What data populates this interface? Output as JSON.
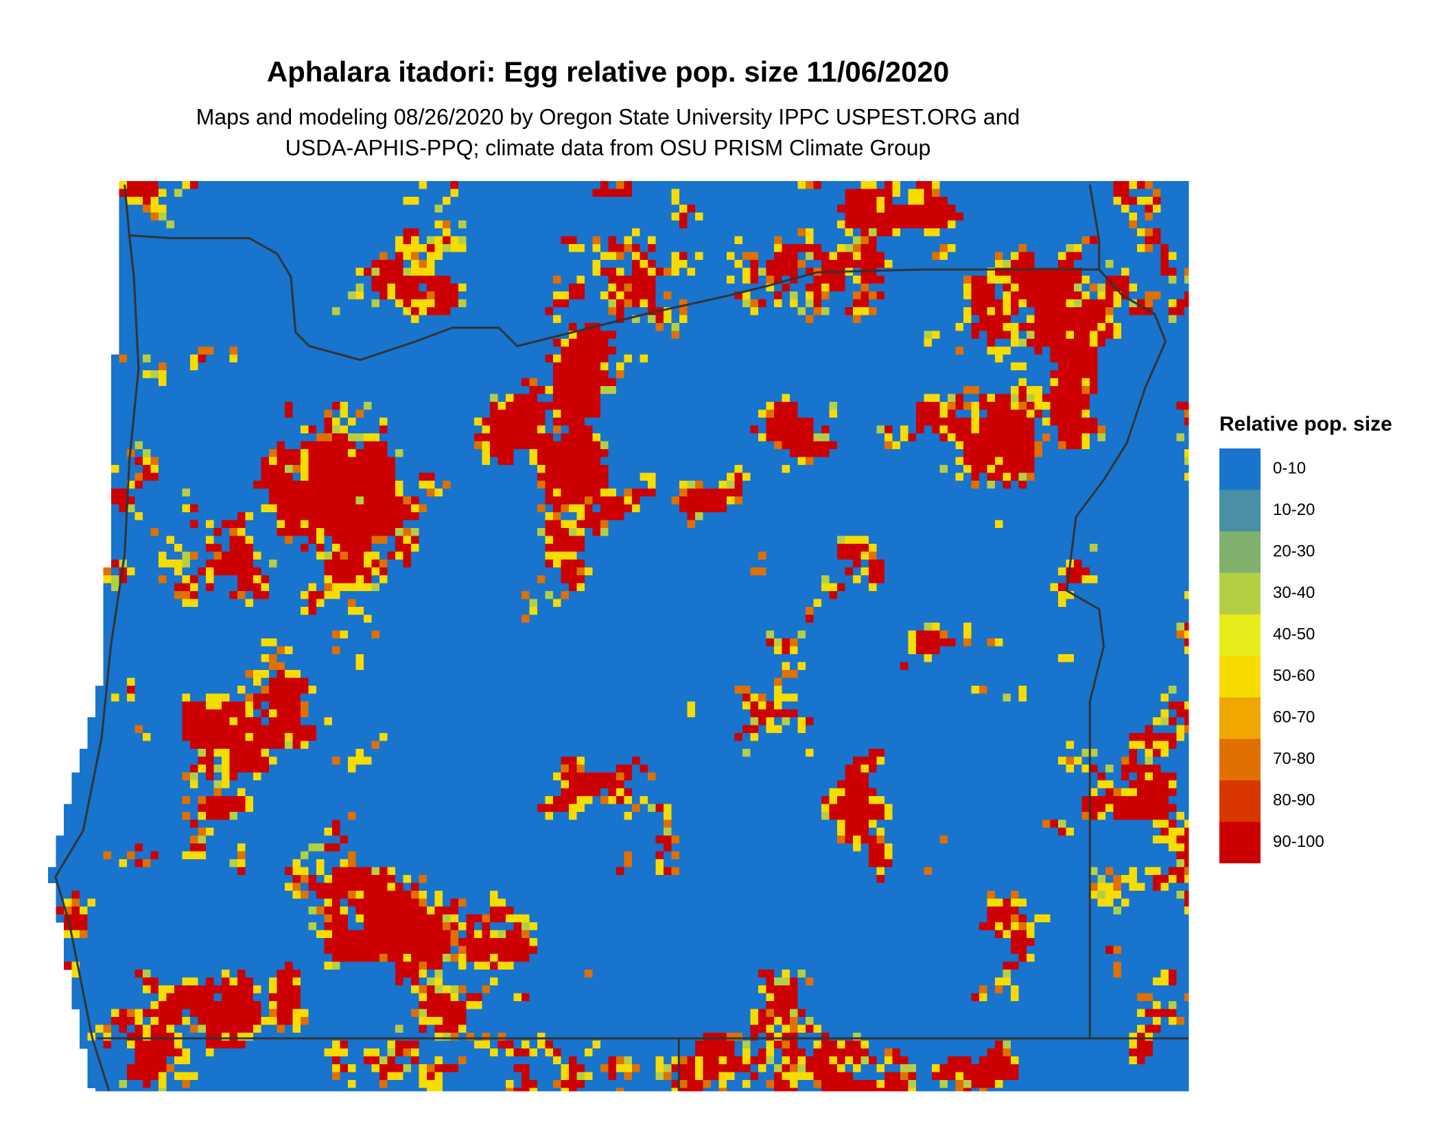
{
  "header": {
    "title": "Aphalara itadori: Egg relative pop. size 11/06/2020",
    "subtitle": [
      "Maps and modeling 08/26/2020 by Oregon State University IPPC USPEST.ORG and",
      "USDA-APHIS-PPQ; climate data from OSU PRISM Climate Group"
    ]
  },
  "legend": {
    "title": "Relative pop. size",
    "items": [
      {
        "label": "0-10",
        "color": "#1874CD"
      },
      {
        "label": "10-20",
        "color": "#4A90A4"
      },
      {
        "label": "20-30",
        "color": "#7FB06E"
      },
      {
        "label": "30-40",
        "color": "#B5CF45"
      },
      {
        "label": "40-50",
        "color": "#E6EC1A"
      },
      {
        "label": "50-60",
        "color": "#F7DC00"
      },
      {
        "label": "60-70",
        "color": "#EFA800"
      },
      {
        "label": "70-80",
        "color": "#E07000"
      },
      {
        "label": "80-90",
        "color": "#D83800"
      },
      {
        "label": "90-100",
        "color": "#CC0000"
      }
    ]
  }
}
